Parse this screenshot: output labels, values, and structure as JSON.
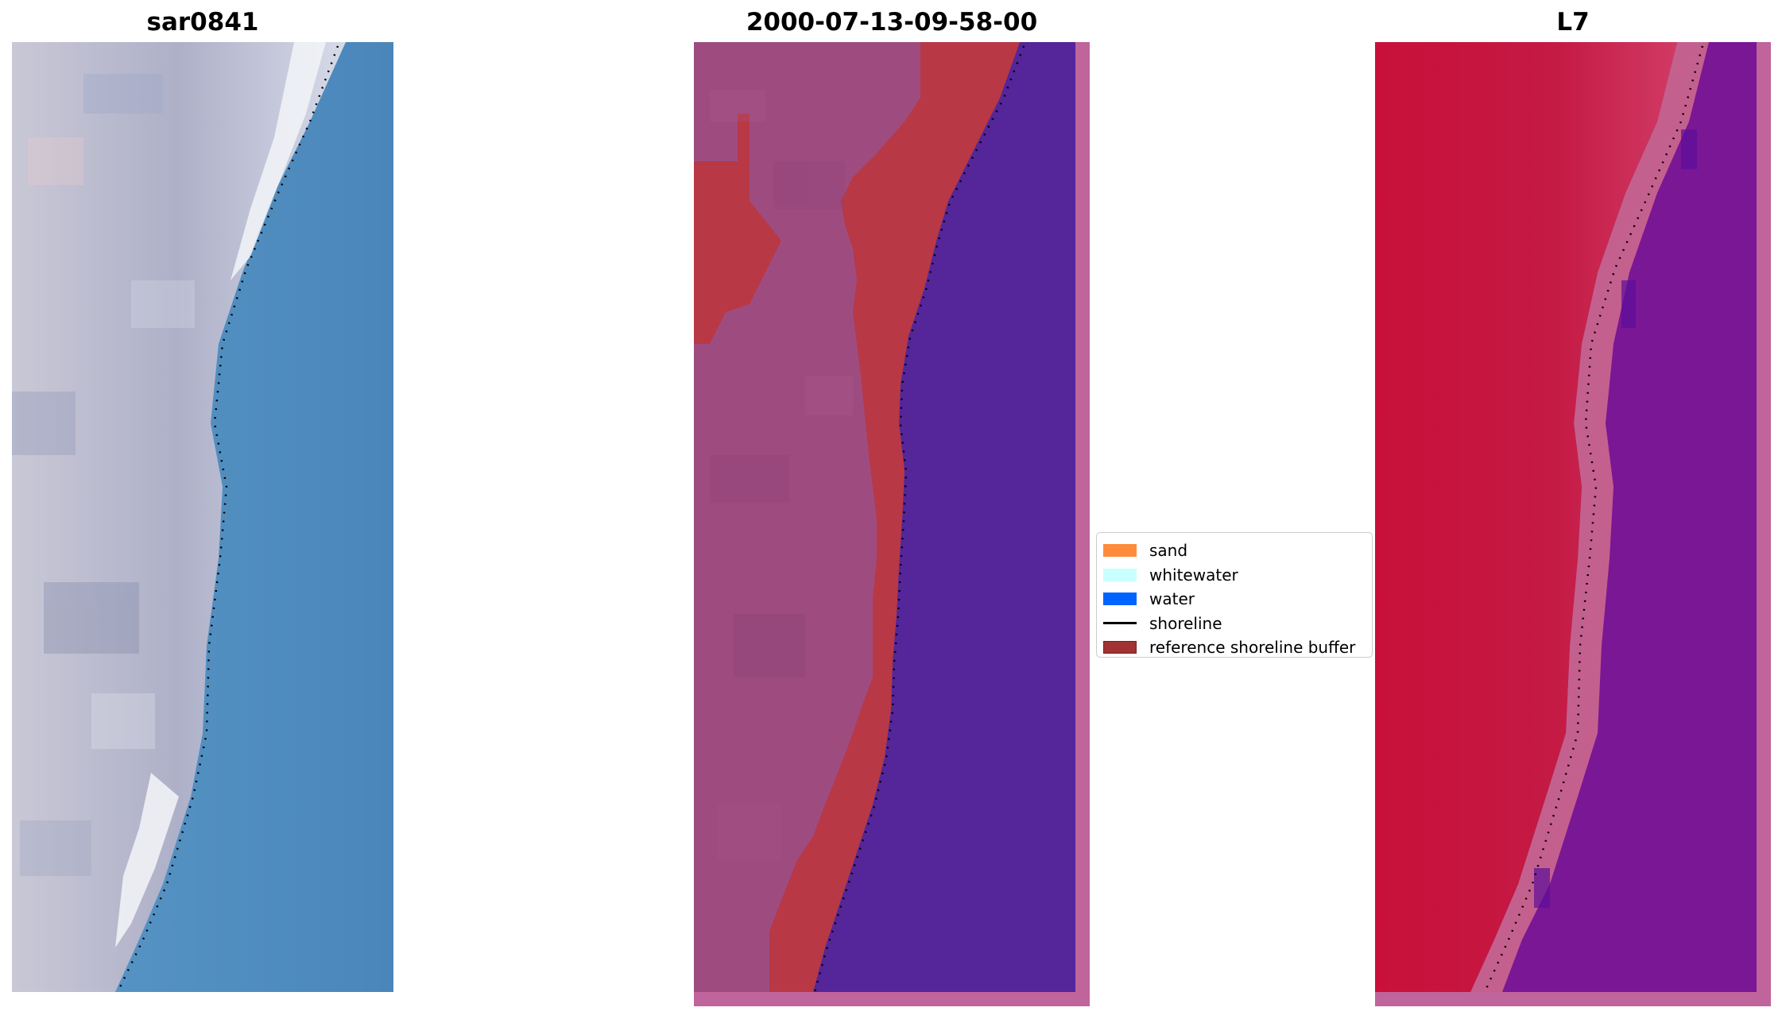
{
  "panels": {
    "rgb": {
      "title": "sar0841"
    },
    "classified": {
      "title": "2000-07-13-09-58-00"
    },
    "index": {
      "title": "L7"
    }
  },
  "legend": {
    "items": [
      {
        "label": "sand",
        "color": "#FF8C3C",
        "kind": "patch"
      },
      {
        "label": "whitewater",
        "color": "#C8FFFF",
        "kind": "patch"
      },
      {
        "label": "water",
        "color": "#0064FF",
        "kind": "patch"
      },
      {
        "label": "shoreline",
        "color": "#000000",
        "kind": "line"
      },
      {
        "label": "reference shoreline buffer",
        "color": "#A03232",
        "kind": "patch",
        "edge": "#7A1E1E"
      }
    ]
  },
  "colors": {
    "land_rgb": "#B9BCD0",
    "sea_rgb": "#4C8DC0",
    "land_class": "#9E4C80",
    "buffer_class": "#B83845",
    "water_class": "#55259A",
    "frame_class": "#C0649C",
    "land_index": "#C1173F",
    "sea_index": "#7A1795"
  }
}
